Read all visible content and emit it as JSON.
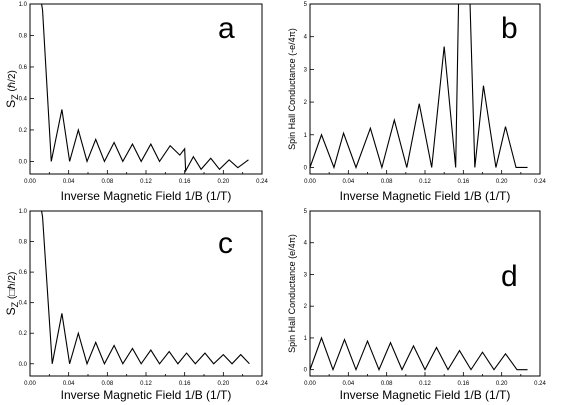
{
  "chart_data": [
    {
      "id": "a",
      "type": "line",
      "panel_label": "a",
      "xlabel": "Inverse Magnetic Field 1/B (1/T)",
      "ylabel_main": "S",
      "ylabel_sub": "Z",
      "ylabel_unit": " (ℏ/2)",
      "xlim": [
        0.0,
        0.24
      ],
      "ylim": [
        -0.08,
        1.0
      ],
      "xticks": [
        0.0,
        0.02,
        0.04,
        0.06,
        0.08,
        0.1,
        0.12,
        0.14,
        0.16,
        0.18,
        0.2,
        0.22,
        0.24
      ],
      "xtick_labels": [
        "0.00",
        "",
        "0.04",
        "",
        "0.08",
        "",
        "0.12",
        "",
        "0.16",
        "",
        "0.20",
        "",
        "0.24"
      ],
      "yticks": [
        0.0,
        0.2,
        0.4,
        0.6,
        0.8,
        1.0
      ],
      "ytick_labels": [
        "0.0",
        "0.2",
        "0.4",
        "0.6",
        "0.8",
        "1.0"
      ],
      "grid": false,
      "series": [
        {
          "x": [
            0.0,
            0.012,
            0.013,
            0.022,
            0.033,
            0.041,
            0.05,
            0.059,
            0.068,
            0.077,
            0.087,
            0.096,
            0.106,
            0.115,
            0.125,
            0.134,
            0.145,
            0.155,
            0.16,
            0.161,
            0.169,
            0.177,
            0.187,
            0.196,
            0.206,
            0.215,
            0.226
          ],
          "y": [
            1.0,
            1.0,
            0.96,
            0.0,
            0.33,
            0.0,
            0.2,
            0.0,
            0.14,
            0.0,
            0.12,
            0.0,
            0.11,
            0.0,
            0.11,
            0.0,
            0.1,
            0.04,
            0.08,
            -0.06,
            0.03,
            -0.05,
            0.02,
            -0.05,
            0.01,
            -0.04,
            0.01
          ]
        }
      ]
    },
    {
      "id": "b",
      "type": "line",
      "panel_label": "b",
      "xlabel": "Inverse Magnetic Field 1/B (1/T)",
      "ylabel_main": "Spin Hall Conductance",
      "ylabel_sub": "",
      "ylabel_unit": " (-e/4π)",
      "xlim": [
        0.0,
        0.24
      ],
      "ylim": [
        -0.2,
        5.0
      ],
      "xticks": [
        0.0,
        0.02,
        0.04,
        0.06,
        0.08,
        0.1,
        0.12,
        0.14,
        0.16,
        0.18,
        0.2,
        0.22,
        0.24
      ],
      "xtick_labels": [
        "0.00",
        "",
        "0.04",
        "",
        "0.08",
        "",
        "0.12",
        "",
        "0.16",
        "",
        "0.20",
        "",
        "0.24"
      ],
      "yticks": [
        0,
        1,
        2,
        3,
        4,
        5
      ],
      "ytick_labels": [
        "0",
        "1",
        "2",
        "3",
        "4",
        "5"
      ],
      "grid": false,
      "series": [
        {
          "x": [
            0.0,
            0.012,
            0.025,
            0.035,
            0.048,
            0.063,
            0.075,
            0.088,
            0.101,
            0.114,
            0.127,
            0.14,
            0.152,
            0.155,
            0.167,
            0.172,
            0.181,
            0.194,
            0.204,
            0.215,
            0.227
          ],
          "y": [
            0.0,
            1.0,
            0.0,
            1.05,
            0.0,
            1.2,
            0.0,
            1.45,
            0.0,
            1.95,
            0.0,
            3.7,
            0.0,
            5.0,
            5.0,
            0.0,
            2.5,
            0.0,
            1.25,
            0.0,
            0.0
          ]
        }
      ]
    },
    {
      "id": "c",
      "type": "line",
      "panel_label": "c",
      "xlabel": "Inverse Magnetic Field 1/B (1/T)",
      "ylabel_main": "S",
      "ylabel_sub": "Z",
      "ylabel_unit": " (□ℏ/2)",
      "xlim": [
        0.0,
        0.24
      ],
      "ylim": [
        -0.08,
        1.0
      ],
      "xticks": [
        0.0,
        0.02,
        0.04,
        0.06,
        0.08,
        0.1,
        0.12,
        0.14,
        0.16,
        0.18,
        0.2,
        0.22,
        0.24
      ],
      "xtick_labels": [
        "0.00",
        "",
        "0.04",
        "",
        "0.08",
        "",
        "0.12",
        "",
        "0.16",
        "",
        "0.20",
        "",
        "0.24"
      ],
      "yticks": [
        0.0,
        0.2,
        0.4,
        0.6,
        0.8,
        1.0
      ],
      "ytick_labels": [
        "0.0",
        "0.2",
        "0.4",
        "0.6",
        "0.8",
        "1.0"
      ],
      "grid": false,
      "series": [
        {
          "x": [
            0.0,
            0.012,
            0.013,
            0.023,
            0.033,
            0.041,
            0.05,
            0.059,
            0.068,
            0.077,
            0.087,
            0.096,
            0.106,
            0.115,
            0.125,
            0.134,
            0.144,
            0.153,
            0.162,
            0.171,
            0.181,
            0.19,
            0.2,
            0.209,
            0.218,
            0.227
          ],
          "y": [
            1.0,
            1.0,
            0.96,
            0.0,
            0.33,
            0.0,
            0.2,
            0.0,
            0.14,
            0.0,
            0.12,
            0.0,
            0.1,
            0.0,
            0.09,
            0.0,
            0.08,
            0.0,
            0.07,
            0.0,
            0.07,
            0.0,
            0.06,
            0.0,
            0.06,
            0.0
          ]
        }
      ]
    },
    {
      "id": "d",
      "type": "line",
      "panel_label": "d",
      "xlabel": "Inverse Magnetic Field 1/B (1/T)",
      "ylabel_main": "Spin Hall Conductance",
      "ylabel_sub": "",
      "ylabel_unit": " (e/4π)",
      "xlim": [
        0.0,
        0.24
      ],
      "ylim": [
        -0.2,
        5.0
      ],
      "xticks": [
        0.0,
        0.02,
        0.04,
        0.06,
        0.08,
        0.1,
        0.12,
        0.14,
        0.16,
        0.18,
        0.2,
        0.22,
        0.24
      ],
      "xtick_labels": [
        "0.00",
        "",
        "0.04",
        "",
        "0.08",
        "",
        "0.12",
        "",
        "0.16",
        "",
        "0.20",
        "",
        "0.24"
      ],
      "yticks": [
        0,
        1,
        2,
        3,
        4,
        5
      ],
      "ytick_labels": [
        "0",
        "1",
        "2",
        "3",
        "4",
        "5"
      ],
      "grid": false,
      "series": [
        {
          "x": [
            0.0,
            0.012,
            0.024,
            0.036,
            0.048,
            0.06,
            0.072,
            0.084,
            0.096,
            0.108,
            0.12,
            0.132,
            0.144,
            0.156,
            0.168,
            0.18,
            0.192,
            0.204,
            0.216,
            0.227
          ],
          "y": [
            0.0,
            1.0,
            0.0,
            0.95,
            0.0,
            0.9,
            0.0,
            0.85,
            0.0,
            0.75,
            0.0,
            0.7,
            0.0,
            0.6,
            0.0,
            0.55,
            0.0,
            0.5,
            0.0,
            0.0
          ]
        }
      ]
    }
  ]
}
